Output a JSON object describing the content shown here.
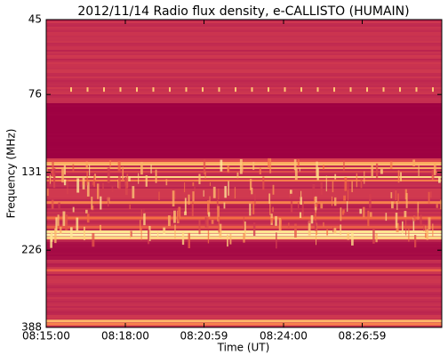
{
  "chart_data": {
    "type": "spectrogram",
    "title": "2012/11/14  Radio flux density, e-CALLISTO (HUMAIN)",
    "xlabel": "Time (UT)",
    "ylabel": "Frequency (MHz)",
    "xlim": [
      "08:15:00",
      "08:30:00"
    ],
    "xticks": [
      "08:15:00",
      "08:18:00",
      "08:20:59",
      "08:24:00",
      "08:26:59"
    ],
    "ylim": [
      45,
      388
    ],
    "yticks": [
      45,
      76,
      131,
      226,
      388
    ],
    "ylog": true,
    "yinverted": true
  }
}
